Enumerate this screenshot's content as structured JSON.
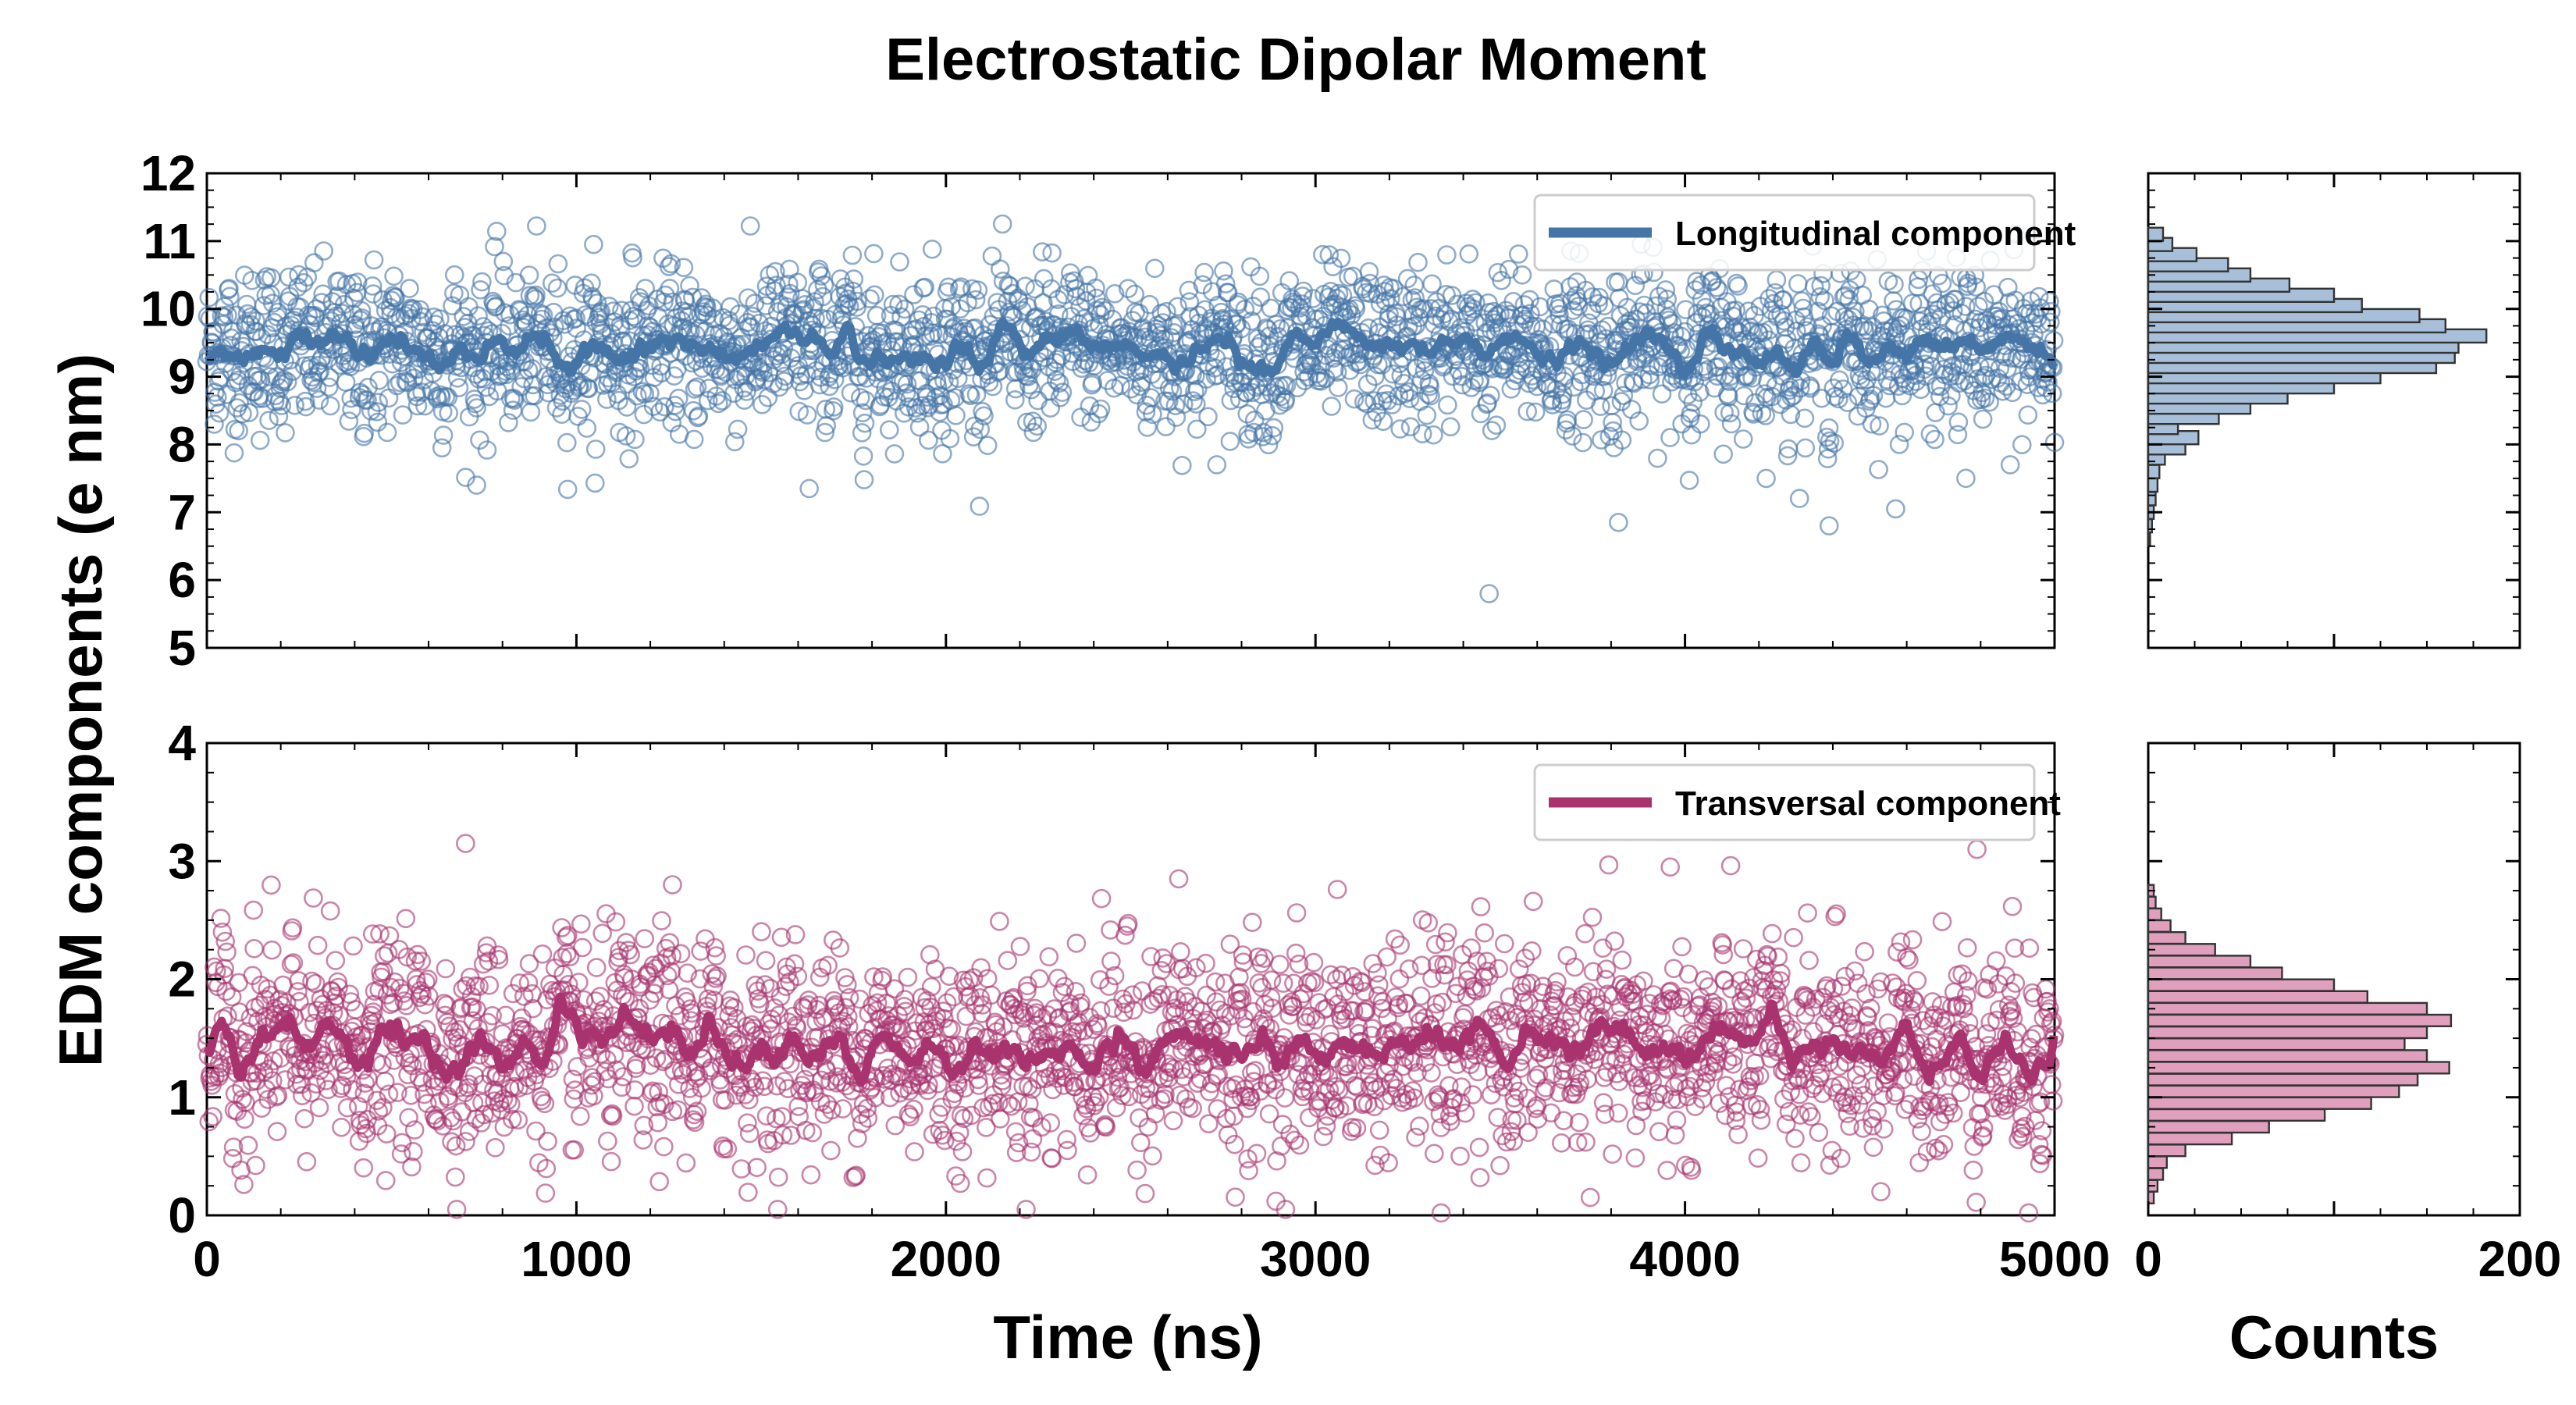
{
  "title": "Electrostatic Dipolar Moment",
  "xlabel": "Time (ns)",
  "ylabel": "EDM components (e nm)",
  "hist_xlabel": "Counts",
  "colors": {
    "longitudinal": "#4575a6",
    "transversal": "#a8336f",
    "longitudinal_hist_fill": "#a7bfd8",
    "transversal_hist_fill": "#df9fbd"
  },
  "chart_data": [
    {
      "type": "scatter",
      "panel": "top",
      "xlim": [
        0,
        5000
      ],
      "ylim": [
        5,
        12
      ],
      "x_ticks": [
        "0",
        "1000",
        "2000",
        "3000",
        "4000",
        "5000"
      ],
      "y_ticks": [
        "5",
        "6",
        "7",
        "8",
        "9",
        "10",
        "11",
        "12"
      ],
      "legend": "top-right",
      "series": [
        {
          "name": "Longitudinal component",
          "kind": "scatter+running-mean",
          "n_points": 2500,
          "mean": 9.4,
          "std": 0.6,
          "x_range": [
            0,
            5000
          ],
          "outliers": [
            [
              730,
              7.4
            ],
            [
              1630,
              7.35
            ],
            [
              3470,
              5.8
            ],
            [
              3820,
              6.85
            ],
            [
              4390,
              6.8
            ],
            [
              4570,
              7.05
            ],
            [
              4760,
              7.5
            ],
            [
              4880,
              7.7
            ]
          ]
        }
      ],
      "grid": false
    },
    {
      "type": "scatter",
      "panel": "bottom",
      "xlim": [
        0,
        5000
      ],
      "ylim": [
        0,
        4
      ],
      "x_ticks": [
        "0",
        "1000",
        "2000",
        "3000",
        "4000",
        "5000"
      ],
      "y_ticks": [
        "0",
        "1",
        "2",
        "3",
        "4"
      ],
      "legend": "top-right",
      "series": [
        {
          "name": "Transversal component",
          "kind": "scatter+running-mean",
          "n_points": 2500,
          "mean": 1.42,
          "std": 0.45,
          "x_range": [
            0,
            5000
          ],
          "outliers": [
            [
              700,
              3.15
            ],
            [
              1260,
              2.8
            ],
            [
              2630,
              2.85
            ],
            [
              3960,
              2.95
            ],
            [
              4790,
              3.1
            ],
            [
              3340,
              0.02
            ],
            [
              4530,
              0.2
            ],
            [
              4930,
              0.02
            ]
          ]
        }
      ],
      "grid": false
    },
    {
      "type": "bar",
      "orientation": "horizontal",
      "panel": "top-histogram",
      "xlim": [
        0,
        200
      ],
      "ylim": [
        5,
        12
      ],
      "bins": [
        {
          "y": 6.6,
          "count": 1
        },
        {
          "y": 6.8,
          "count": 2
        },
        {
          "y": 7.0,
          "count": 3
        },
        {
          "y": 7.2,
          "count": 4
        },
        {
          "y": 7.4,
          "count": 5
        },
        {
          "y": 7.6,
          "count": 6
        },
        {
          "y": 7.8,
          "count": 9
        },
        {
          "y": 7.95,
          "count": 20
        },
        {
          "y": 8.1,
          "count": 27
        },
        {
          "y": 8.25,
          "count": 16
        },
        {
          "y": 8.4,
          "count": 38
        },
        {
          "y": 8.55,
          "count": 55
        },
        {
          "y": 8.7,
          "count": 75
        },
        {
          "y": 8.85,
          "count": 100
        },
        {
          "y": 9.0,
          "count": 125
        },
        {
          "y": 9.15,
          "count": 155
        },
        {
          "y": 9.3,
          "count": 165
        },
        {
          "y": 9.45,
          "count": 167
        },
        {
          "y": 9.6,
          "count": 182
        },
        {
          "y": 9.75,
          "count": 160
        },
        {
          "y": 9.9,
          "count": 146
        },
        {
          "y": 10.05,
          "count": 115
        },
        {
          "y": 10.2,
          "count": 100
        },
        {
          "y": 10.35,
          "count": 76
        },
        {
          "y": 10.5,
          "count": 55
        },
        {
          "y": 10.65,
          "count": 43
        },
        {
          "y": 10.8,
          "count": 26
        },
        {
          "y": 10.95,
          "count": 13
        },
        {
          "y": 11.1,
          "count": 8
        }
      ]
    },
    {
      "type": "bar",
      "orientation": "horizontal",
      "panel": "bottom-histogram",
      "xlim": [
        0,
        200
      ],
      "ylim": [
        0,
        4
      ],
      "x_ticks": [
        "0",
        "200"
      ],
      "bins": [
        {
          "y": 0.15,
          "count": 3
        },
        {
          "y": 0.25,
          "count": 5
        },
        {
          "y": 0.35,
          "count": 8
        },
        {
          "y": 0.45,
          "count": 10
        },
        {
          "y": 0.55,
          "count": 20
        },
        {
          "y": 0.65,
          "count": 45
        },
        {
          "y": 0.75,
          "count": 65
        },
        {
          "y": 0.85,
          "count": 95
        },
        {
          "y": 0.95,
          "count": 120
        },
        {
          "y": 1.05,
          "count": 135
        },
        {
          "y": 1.15,
          "count": 145
        },
        {
          "y": 1.25,
          "count": 162
        },
        {
          "y": 1.35,
          "count": 150
        },
        {
          "y": 1.45,
          "count": 138
        },
        {
          "y": 1.55,
          "count": 150
        },
        {
          "y": 1.65,
          "count": 163
        },
        {
          "y": 1.75,
          "count": 150
        },
        {
          "y": 1.85,
          "count": 118
        },
        {
          "y": 1.95,
          "count": 100
        },
        {
          "y": 2.05,
          "count": 72
        },
        {
          "y": 2.15,
          "count": 55
        },
        {
          "y": 2.25,
          "count": 36
        },
        {
          "y": 2.35,
          "count": 20
        },
        {
          "y": 2.45,
          "count": 12
        },
        {
          "y": 2.55,
          "count": 7
        },
        {
          "y": 2.65,
          "count": 4
        },
        {
          "y": 2.75,
          "count": 3
        }
      ]
    }
  ]
}
